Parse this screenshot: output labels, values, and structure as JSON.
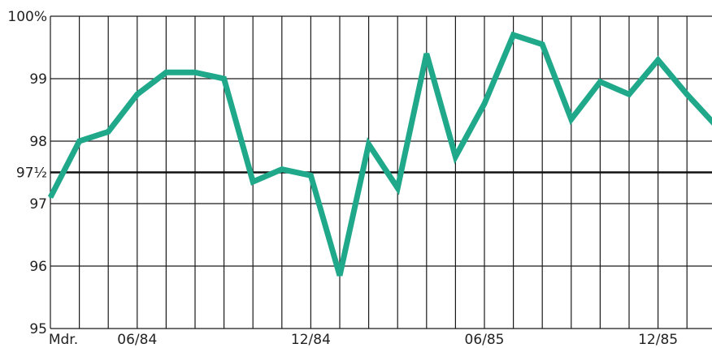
{
  "chart_data": {
    "type": "line",
    "title": "",
    "xlabel": "",
    "ylabel": "",
    "ylim": [
      95,
      100
    ],
    "grid": true,
    "x_tick_labels": [
      "Mdr.",
      "06/84",
      "12/84",
      "06/85",
      "12/85"
    ],
    "y_tick_labels": [
      {
        "value": 100,
        "label": "100%"
      },
      {
        "value": 99,
        "label": "99"
      },
      {
        "value": 98,
        "label": "98"
      },
      {
        "value": 97.5,
        "label": "97½"
      },
      {
        "value": 97,
        "label": "97"
      },
      {
        "value": 96,
        "label": "96"
      },
      {
        "value": 95,
        "label": "95"
      }
    ],
    "reference_line": 97.5,
    "series": [
      {
        "color": "#1fa88a",
        "x": [
          "Mdr.",
          "04/84",
          "05/84",
          "06/84",
          "07/84",
          "08/84",
          "09/84",
          "10/84",
          "11/84",
          "12/84",
          "01/85",
          "02/85",
          "03/85",
          "04/85",
          "05/85",
          "06/85",
          "07/85",
          "08/85",
          "09/85",
          "10/85",
          "11/85",
          "12/85",
          "01/86",
          "02/86",
          "03/86"
        ],
        "values": [
          97.1,
          98.0,
          98.15,
          98.75,
          99.1,
          99.1,
          99.0,
          97.35,
          97.55,
          97.45,
          95.85,
          97.95,
          97.25,
          99.4,
          97.75,
          98.6,
          99.7,
          99.55,
          98.35,
          98.95,
          98.75,
          99.3,
          98.75,
          98.25,
          98.0
        ]
      }
    ]
  }
}
